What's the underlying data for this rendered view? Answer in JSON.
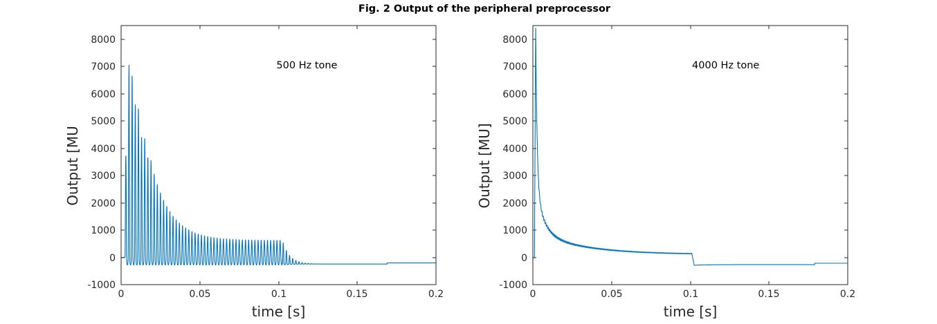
{
  "figure": {
    "title": "Fig. 2 Output of the peripheral preprocessor",
    "background_color": "#ffffff",
    "line_color": "#0072BD",
    "axis_color": "#262626",
    "tick_label_color": "#262626",
    "title_color": "#000000"
  },
  "chart_data": [
    {
      "type": "line",
      "panel": "left",
      "annotation": {
        "text": "500 Hz tone",
        "t_s": 0.118,
        "value_MU": 7050
      },
      "xlabel": "time [s]",
      "ylabel": "Output [MU",
      "xlim": [
        0,
        0.2
      ],
      "ylim": [
        -1000,
        8500
      ],
      "xticks": [
        0,
        0.05,
        0.1,
        0.15,
        0.2
      ],
      "xtick_labels": [
        "0",
        "0.05",
        "0.1",
        "0.15",
        "0.2"
      ],
      "yticks": [
        -1000,
        0,
        1000,
        2000,
        3000,
        4000,
        5000,
        6000,
        7000,
        8000
      ],
      "ytick_labels": [
        "-1000",
        "0",
        "1000",
        "2000",
        "3000",
        "4000",
        "5000",
        "6000",
        "7000",
        "8000"
      ],
      "grid": false,
      "legend": null,
      "signal": {
        "model": "half-wave-rectified 500 Hz tone burst with neural adaptation",
        "tone_freq_hz": 500,
        "tone_on_s": 0.0025,
        "tone_off_s": 0.1025,
        "pre_onset_level_MU": 0,
        "onset_envelope_peaks_t_MU": [
          [
            0.003,
            3700
          ],
          [
            0.005,
            7050
          ],
          [
            0.007,
            6650
          ],
          [
            0.009,
            5600
          ],
          [
            0.011,
            5450
          ],
          [
            0.013,
            4400
          ],
          [
            0.015,
            4350
          ],
          [
            0.017,
            3650
          ],
          [
            0.019,
            3550
          ],
          [
            0.021,
            3050
          ]
        ],
        "adapted_steady_peak_MU": 620,
        "adaptation_tau_s": 0.012,
        "trough_MU": -280,
        "offset_ring_tau_s": 0.0045,
        "post_tone_baseline_MU": -245,
        "late_step": {
          "t_s": 0.169,
          "level_MU": -205
        }
      }
    },
    {
      "type": "line",
      "panel": "right",
      "annotation": {
        "text": "4000 Hz tone",
        "t_s": 0.1225,
        "value_MU": 7050
      },
      "xlabel": "time [s]",
      "ylabel": "Output [MU]",
      "xlim": [
        0,
        0.2
      ],
      "ylim": [
        -1000,
        8500
      ],
      "xticks": [
        0,
        0.05,
        0.1,
        0.15,
        0.2
      ],
      "xtick_labels": [
        "0",
        "0.05",
        "0.1",
        "0.15",
        "0.2"
      ],
      "yticks": [
        -1000,
        0,
        1000,
        2000,
        3000,
        4000,
        5000,
        6000,
        7000,
        8000
      ],
      "ytick_labels": [
        "-1000",
        "0",
        "1000",
        "2000",
        "3000",
        "4000",
        "5000",
        "6000",
        "7000",
        "8000"
      ],
      "grid": false,
      "legend": null,
      "signal": {
        "model": "4 kHz envelope response with rapid adaptation (fine structure unresolved)",
        "tone_freq_hz": 4000,
        "tone_on_s": 0.001,
        "tone_off_s": 0.101,
        "pre_onset_level_MU": 0,
        "onset_peak_MU": 8450,
        "rise_time_s": 0.0008,
        "decay_components_A_tau": [
          [
            5800,
            0.0009
          ],
          [
            1700,
            0.005
          ],
          [
            800,
            0.03
          ]
        ],
        "adapted_steady_MU": 105,
        "ripple_period_s": 0.0008,
        "ripple_amp_max_MU": 45,
        "key_decay_samples_t_MU": [
          [
            0.0018,
            8450
          ],
          [
            0.005,
            1600
          ],
          [
            0.01,
            980
          ],
          [
            0.02,
            570
          ],
          [
            0.03,
            410
          ],
          [
            0.05,
            260
          ],
          [
            0.08,
            165
          ],
          [
            0.1,
            134
          ]
        ],
        "offset_undershoot_MU": -290,
        "offset_fall_time_s": 0.0015,
        "recovery_level_MU": -268,
        "recovery_tau_s": 0.008,
        "late_step": {
          "t_s": 0.179,
          "level_MU": -215
        }
      }
    }
  ]
}
